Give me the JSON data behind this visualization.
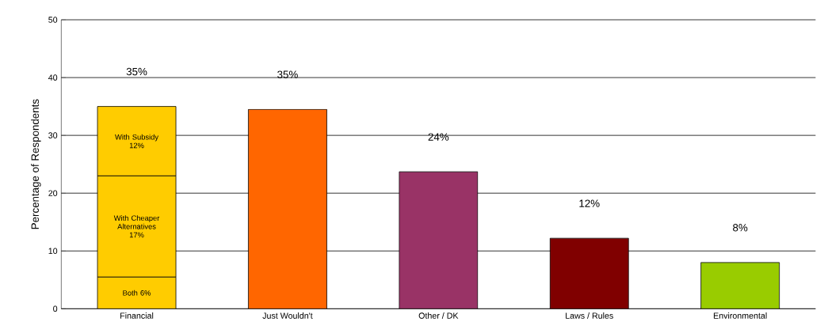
{
  "chart_data": {
    "type": "bar",
    "stacked": true,
    "ylabel": "Percentage of Respondents",
    "categories": [
      "Financial",
      "Just Wouldn't",
      "Other / DK",
      "Laws / Rules",
      "Environmental"
    ],
    "series": [
      {
        "colors": [
          "#ffcc00",
          "#ff6600",
          "#993366",
          "#800000",
          "#99cc00"
        ],
        "values": [
          5.5,
          34.5,
          23.7,
          12.2,
          8
        ],
        "value_labels": [
          "Both 6%",
          null,
          null,
          null,
          null
        ]
      },
      {
        "color": "#ffcc00",
        "values": [
          17.5,
          null,
          null,
          null,
          null
        ],
        "value_labels": [
          "With Cheaper Alternatives 17%",
          null,
          null,
          null,
          null
        ]
      },
      {
        "color": "#ffcc00",
        "values": [
          12,
          null,
          null,
          null,
          null
        ],
        "value_labels": [
          "With Subsidy 12%",
          null,
          null,
          null,
          null
        ]
      }
    ],
    "totals": [
      "35%",
      "35%",
      "24%",
      "12%",
      "8%"
    ],
    "ylim": [
      0,
      50
    ],
    "yticks": [
      0,
      10,
      20,
      30,
      40,
      50
    ],
    "grid": "y"
  }
}
